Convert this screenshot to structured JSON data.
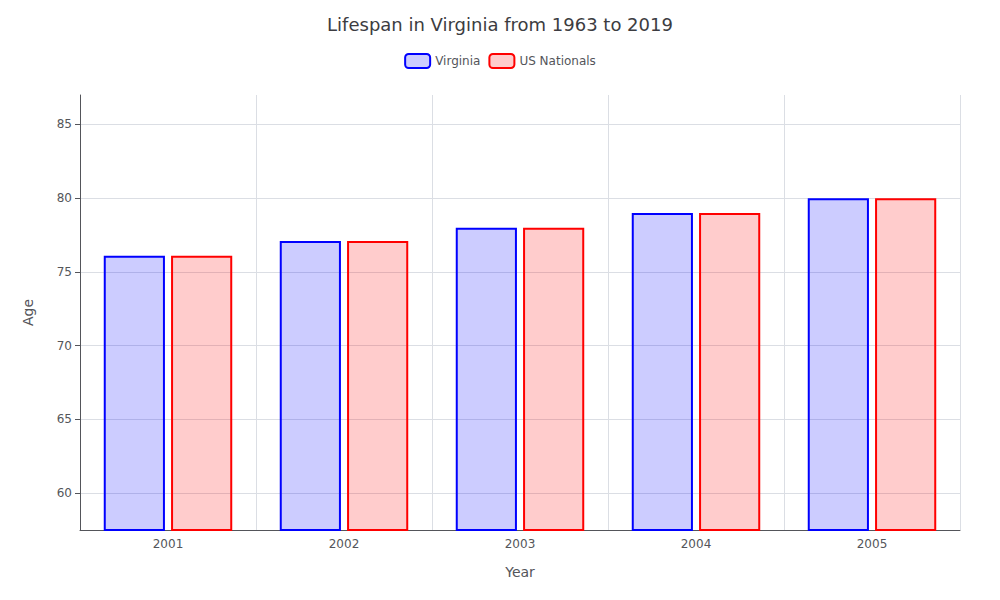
{
  "chart_data": {
    "type": "bar",
    "title": "Lifespan in Virginia from 1963 to 2019",
    "xlabel": "Year",
    "ylabel": "Age",
    "categories": [
      "2001",
      "2002",
      "2003",
      "2004",
      "2005"
    ],
    "series": [
      {
        "name": "Virginia",
        "color": "#0000ff",
        "values": [
          76.1,
          77.1,
          78.0,
          79.0,
          80.0
        ]
      },
      {
        "name": "US Nationals",
        "color": "#ff0000",
        "values": [
          76.1,
          77.1,
          78.0,
          79.0,
          80.0
        ]
      }
    ],
    "ylim": [
      57.5,
      87
    ],
    "yticks": [
      60,
      65,
      70,
      75,
      80,
      85
    ],
    "grid": true,
    "legend": "top"
  }
}
